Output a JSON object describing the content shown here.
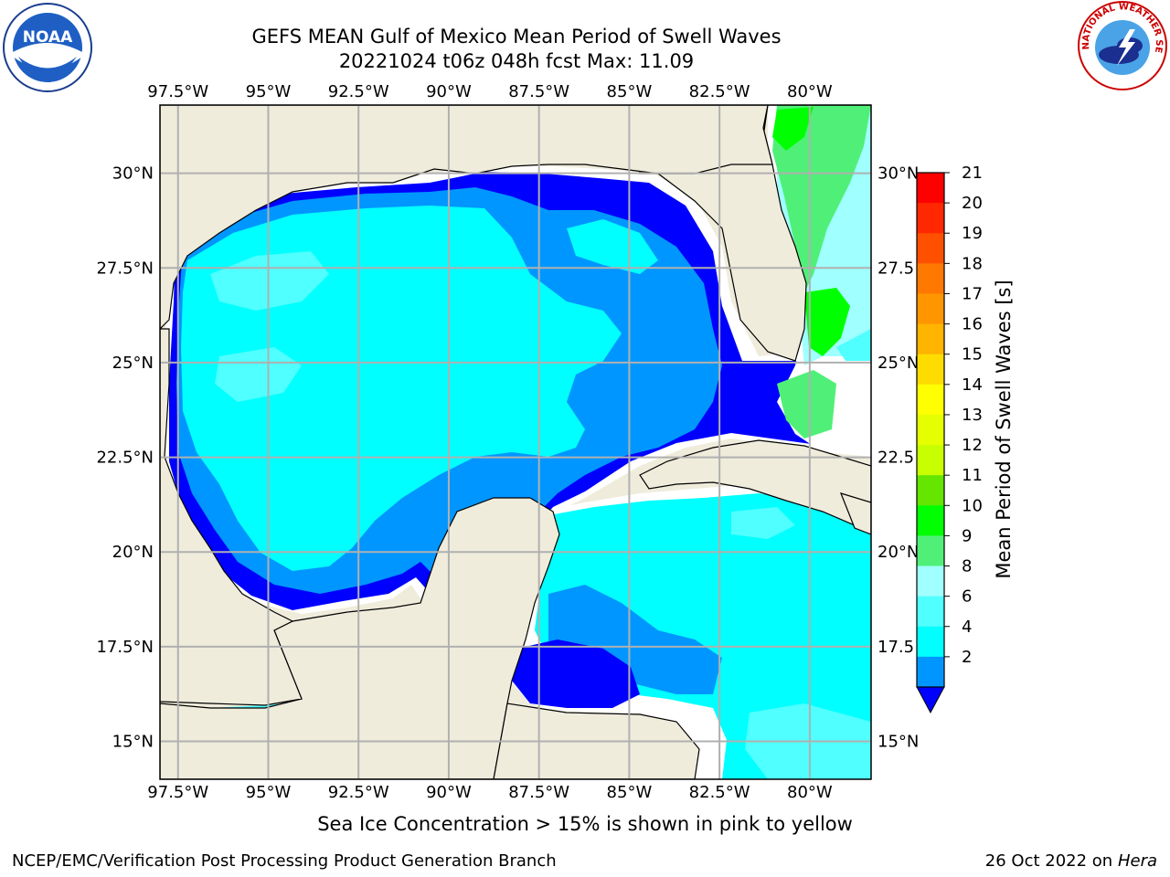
{
  "header": {
    "title_line1": "GEFS MEAN Gulf of Mexico Mean Period of Swell Waves",
    "title_line2": "20221024 t06z 048h fcst   Max: 11.09"
  },
  "logos": {
    "left": {
      "icon": "noaa-logo",
      "text": "NOAA"
    },
    "right": {
      "icon": "nws-logo",
      "text": "NATIONAL WEATHER SERVICE"
    }
  },
  "map": {
    "lon_labels": [
      "97.5°W",
      "95°W",
      "92.5°W",
      "90°W",
      "87.5°W",
      "85°W",
      "82.5°W",
      "80°W"
    ],
    "lon_values": [
      -97.5,
      -95,
      -92.5,
      -90,
      -87.5,
      -85,
      -82.5,
      -80
    ],
    "lat_labels_left": [
      "30°N",
      "27.5°N",
      "25°N",
      "22.5°N",
      "20°N",
      "17.5°N",
      "15°N"
    ],
    "lat_labels_right": [
      "30°N",
      "27.5",
      "25°N",
      "22.5",
      "20°N",
      "17.5",
      "15°N"
    ],
    "lat_values": [
      30,
      27.5,
      25,
      22.5,
      20,
      17.5,
      15
    ],
    "extent": {
      "lon_min": -98,
      "lon_max": -78.3,
      "lat_min": 14,
      "lat_max": 31.8
    },
    "colors": {
      "land": "#efecdc",
      "coast": "#000000",
      "grid": "#b0b0b0",
      "no_data": "#ffffff"
    }
  },
  "colorbar": {
    "label": "Mean Period of Swell Waves [s]",
    "ticks": [
      "21",
      "20",
      "19",
      "18",
      "17",
      "16",
      "15",
      "14",
      "13",
      "12",
      "11",
      "10",
      "9",
      "8",
      "6",
      "4",
      "2"
    ],
    "colors": [
      "#ff0000",
      "#ff2800",
      "#ff5000",
      "#ff7800",
      "#ff9600",
      "#ffb400",
      "#ffdc00",
      "#ffff00",
      "#e6ff00",
      "#c8ff00",
      "#64e600",
      "#00ff00",
      "#50f078",
      "#a0ffff",
      "#50ffff",
      "#00ffff",
      "#0096ff"
    ],
    "under_color": "#0000ff"
  },
  "footer": {
    "note": "Sea Ice Concentration > 15% is shown in pink to yellow",
    "credit": "NCEP/EMC/Verification Post Processing Product Generation Branch",
    "date_prefix": "26 Oct 2022 on ",
    "date_host": "Hera"
  }
}
